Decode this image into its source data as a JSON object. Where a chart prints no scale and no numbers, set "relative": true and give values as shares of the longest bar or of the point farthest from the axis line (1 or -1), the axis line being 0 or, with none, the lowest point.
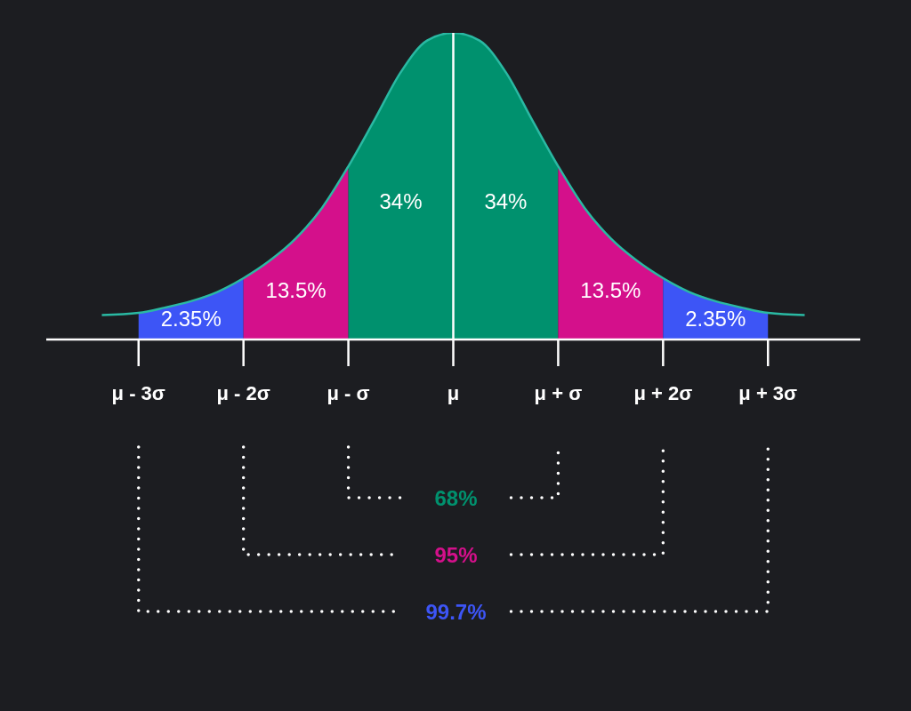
{
  "chart_data": {
    "type": "area",
    "relative": true,
    "series": [
      {
        "color": "#3d55f6",
        "x": [
          -3,
          -2.75,
          -2.5,
          -2.25,
          -2
        ],
        "values": [
          0.087,
          0.104,
          0.125,
          0.155,
          0.2
        ]
      },
      {
        "color": "#d4108b",
        "x": [
          -2,
          -1.75,
          -1.5,
          -1.25,
          -1
        ],
        "values": [
          0.2,
          0.257,
          0.33,
          0.43,
          0.565
        ]
      },
      {
        "color": "#00916e",
        "x": [
          -1,
          -0.75,
          -0.5,
          -0.25,
          0
        ],
        "values": [
          0.565,
          0.717,
          0.872,
          0.975,
          1
        ]
      },
      {
        "color": "#00916e",
        "x": [
          0,
          0.25,
          0.5,
          0.75,
          1
        ],
        "values": [
          1,
          0.975,
          0.872,
          0.717,
          0.565
        ]
      },
      {
        "color": "#d4108b",
        "x": [
          1,
          1.25,
          1.5,
          1.75,
          2
        ],
        "values": [
          0.565,
          0.43,
          0.33,
          0.257,
          0.2
        ]
      },
      {
        "color": "#3d55f6",
        "x": [
          2,
          2.25,
          2.5,
          2.75,
          3
        ],
        "values": [
          0.2,
          0.155,
          0.125,
          0.104,
          0.087
        ]
      },
      {
        "type": "line",
        "color": "#2ab9a3",
        "x": [
          -3.35,
          -3,
          -2.75,
          -2.5,
          -2.25,
          -2,
          -1.75,
          -1.5,
          -1.25,
          -1,
          -0.75,
          -0.5,
          -0.25,
          0,
          0.25,
          0.5,
          0.75,
          1,
          1.25,
          1.5,
          1.75,
          2,
          2.25,
          2.5,
          2.75,
          3,
          3.35
        ],
        "values": [
          0.08,
          0.087,
          0.104,
          0.125,
          0.155,
          0.2,
          0.257,
          0.33,
          0.43,
          0.565,
          0.717,
          0.872,
          0.975,
          1,
          0.975,
          0.872,
          0.717,
          0.565,
          0.43,
          0.33,
          0.257,
          0.2,
          0.155,
          0.125,
          0.104,
          0.087,
          0.08
        ]
      }
    ],
    "xlim": [
      -3.88,
      3.88
    ],
    "xticks": [
      {
        "value": -3,
        "label": "μ - 3σ"
      },
      {
        "value": -2,
        "label": "μ - 2σ"
      },
      {
        "value": -1,
        "label": "μ - σ"
      },
      {
        "value": 0,
        "label": "μ"
      },
      {
        "value": 1,
        "label": "μ + σ"
      },
      {
        "value": 2,
        "label": "μ + 2σ"
      },
      {
        "value": 3,
        "label": "μ + 3σ"
      }
    ],
    "ref_lines": [
      {
        "axis": "x",
        "value": 0,
        "color": "#ffffff"
      }
    ],
    "annotations": [
      "2.35%",
      "13.5%",
      "34%",
      "34%",
      "13.5%",
      "2.35%",
      "68%",
      "95%",
      "99.7%"
    ]
  }
}
